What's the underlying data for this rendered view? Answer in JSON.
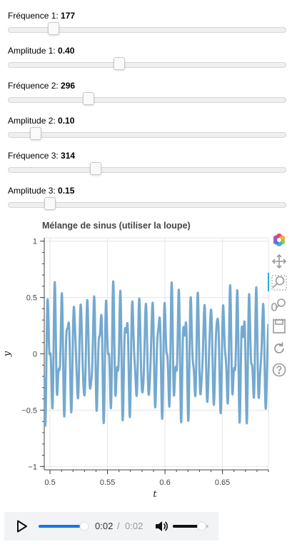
{
  "sliders": [
    {
      "label": "Fréquence 1: ",
      "value": "177",
      "fraction": 0.165
    },
    {
      "label": "Amplitude 1: ",
      "value": "0.40",
      "fraction": 0.4
    },
    {
      "label": "Fréquence 2: ",
      "value": "296",
      "fraction": 0.29
    },
    {
      "label": "Amplitude 2: ",
      "value": "0.10",
      "fraction": 0.1
    },
    {
      "label": "Fréquence 3: ",
      "value": "314",
      "fraction": 0.315
    },
    {
      "label": "Amplitude 3: ",
      "value": "0.15",
      "fraction": 0.15
    }
  ],
  "chart_data": {
    "type": "line",
    "title": "Mélange de sinus (utiliser la loupe)",
    "xlabel": "t",
    "ylabel": "y",
    "xlim": [
      0.495,
      0.69
    ],
    "ylim": [
      -1.03,
      1.03
    ],
    "xticks": [
      0.5,
      0.55,
      0.6,
      0.65
    ],
    "xtick_labels": [
      "0.5",
      "0.55",
      "0.6",
      "0.65"
    ],
    "yticks": [
      1,
      0.5,
      0,
      -0.5,
      -1
    ],
    "ytick_labels": [
      "1",
      "0.5",
      "0",
      "−0.5",
      "−1"
    ],
    "grid": true,
    "line_color": "#74a9cf",
    "series": [
      {
        "components": [
          {
            "frequency": 177,
            "amplitude": 0.4
          },
          {
            "frequency": 296,
            "amplitude": 0.1
          },
          {
            "frequency": 314,
            "amplitude": 0.15
          }
        ]
      }
    ]
  },
  "toolbar": {
    "tools": [
      "bokeh-logo-icon",
      "pan-icon",
      "box-zoom-icon",
      "wheel-zoom-icon",
      "save-icon",
      "reset-icon",
      "help-icon"
    ],
    "active_tool": "box-zoom-icon"
  },
  "audio": {
    "current_time": "0:02",
    "separator": "/",
    "total_time": "0:02",
    "progress": 1.0,
    "volume": 0.85
  }
}
